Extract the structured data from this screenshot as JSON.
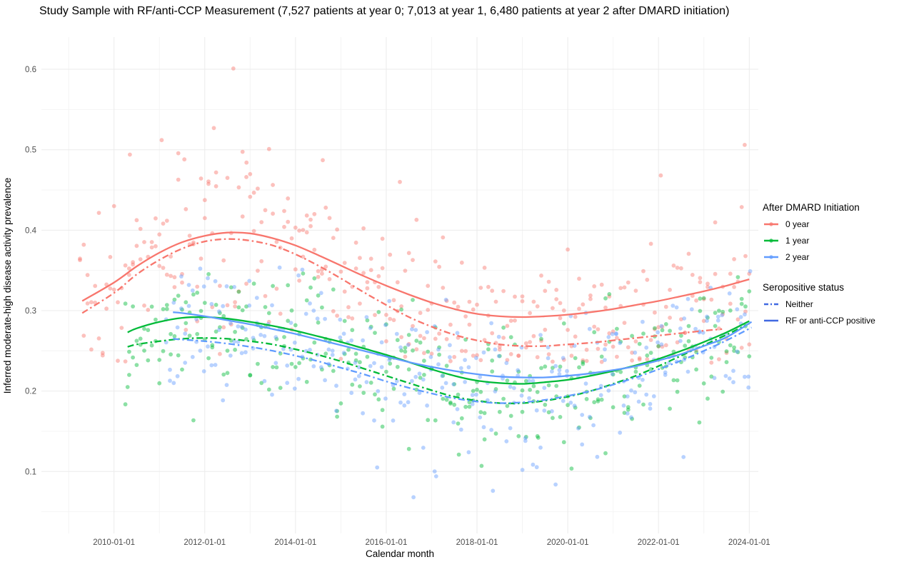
{
  "title": "Study Sample with RF/anti-CCP Measurement (7,527 patients at year 0; 7,013 at year 1, 6,480 patients at year 2 after DMARD initiation)",
  "axes": {
    "x": {
      "label": "Calendar month",
      "ticks": [
        "2010-01-01",
        "2012-01-01",
        "2014-01-01",
        "2016-01-01",
        "2018-01-01",
        "2020-01-01",
        "2022-01-01",
        "2024-01-01"
      ]
    },
    "y": {
      "label": "Inferred moderate-high disease activity prevalence",
      "ticks": [
        0.1,
        0.2,
        0.3,
        0.4,
        0.5,
        0.6
      ]
    }
  },
  "legend": {
    "color": {
      "title": "After DMARD Initiation",
      "items": [
        {
          "key": "0 year",
          "label": "0 year"
        },
        {
          "key": "1 year",
          "label": "1 year"
        },
        {
          "key": "2 year",
          "label": "2 year"
        }
      ]
    },
    "linetype": {
      "title": "Seropositive status",
      "color": "#4169E1",
      "items": [
        {
          "label": "Neither",
          "dash": "dotdash"
        },
        {
          "label": "RF or anti-CCP positive",
          "dash": "solid"
        }
      ]
    }
  },
  "chart_data": {
    "type": "scatter",
    "x_domain_years": [
      2008.4,
      2024.2
    ],
    "y_domain": [
      0.023,
      0.64
    ],
    "minor_x_years": [
      2009,
      2011,
      2013,
      2015,
      2017,
      2019,
      2021,
      2023
    ],
    "minor_y": [
      0.05,
      0.15,
      0.25,
      0.35,
      0.45,
      0.55
    ],
    "palette": {
      "0 year": "#F8766D",
      "1 year": "#00BA38",
      "2 year": "#619CFF"
    },
    "point_alpha": 0.45,
    "point_radius": 2.9,
    "line_width": 2.3,
    "dash_pattern": "9 4 2.5 4",
    "curves": [
      {
        "id": "y0_pos",
        "color_key": "0 year",
        "serostatus": "RF or anti-CCP positive",
        "linetype": "solid",
        "x": [
          2009.3,
          2010,
          2010.5,
          2011,
          2011.5,
          2012,
          2012.5,
          2013,
          2013.5,
          2014,
          2014.5,
          2015,
          2015.5,
          2016,
          2016.5,
          2017,
          2017.5,
          2018,
          2018.5,
          2019,
          2019.5,
          2020,
          2020.5,
          2021,
          2021.5,
          2022,
          2022.5,
          2023,
          2023.5,
          2024
        ],
        "y": [
          0.312,
          0.335,
          0.355,
          0.372,
          0.385,
          0.393,
          0.397,
          0.396,
          0.39,
          0.381,
          0.369,
          0.356,
          0.343,
          0.331,
          0.32,
          0.31,
          0.302,
          0.296,
          0.293,
          0.292,
          0.293,
          0.295,
          0.298,
          0.302,
          0.307,
          0.312,
          0.318,
          0.324,
          0.331,
          0.339
        ]
      },
      {
        "id": "y0_nei",
        "color_key": "0 year",
        "serostatus": "Neither",
        "linetype": "dotdash",
        "x": [
          2009.3,
          2010,
          2010.5,
          2011,
          2011.5,
          2012,
          2012.5,
          2013,
          2013.5,
          2014,
          2014.5,
          2015,
          2015.5,
          2016,
          2016.5,
          2017,
          2017.5,
          2018,
          2018.5,
          2019,
          2019.5,
          2020,
          2020.5,
          2021,
          2021.5,
          2022,
          2022.5,
          2023,
          2023.4
        ],
        "y": [
          0.297,
          0.322,
          0.345,
          0.363,
          0.377,
          0.386,
          0.389,
          0.387,
          0.381,
          0.37,
          0.356,
          0.34,
          0.323,
          0.307,
          0.292,
          0.28,
          0.27,
          0.263,
          0.258,
          0.256,
          0.256,
          0.258,
          0.26,
          0.263,
          0.266,
          0.269,
          0.272,
          0.275,
          0.277
        ]
      },
      {
        "id": "y1_pos",
        "color_key": "1 year",
        "serostatus": "RF or anti-CCP positive",
        "linetype": "solid",
        "x": [
          2010.3,
          2010.5,
          2011,
          2011.5,
          2012,
          2012.5,
          2013,
          2013.5,
          2014,
          2014.5,
          2015,
          2015.5,
          2016,
          2016.5,
          2017,
          2017.5,
          2018,
          2018.5,
          2019,
          2019.5,
          2020,
          2020.5,
          2021,
          2021.5,
          2022,
          2022.5,
          2023,
          2023.5,
          2024
        ],
        "y": [
          0.273,
          0.278,
          0.286,
          0.291,
          0.292,
          0.29,
          0.286,
          0.281,
          0.275,
          0.268,
          0.261,
          0.253,
          0.245,
          0.236,
          0.227,
          0.219,
          0.213,
          0.21,
          0.209,
          0.211,
          0.214,
          0.219,
          0.225,
          0.232,
          0.24,
          0.25,
          0.261,
          0.273,
          0.287
        ]
      },
      {
        "id": "y1_nei",
        "color_key": "1 year",
        "serostatus": "Neither",
        "linetype": "dotdash",
        "x": [
          2010.3,
          2010.5,
          2011,
          2011.5,
          2012,
          2012.5,
          2013,
          2013.5,
          2014,
          2014.5,
          2015,
          2015.5,
          2016,
          2016.5,
          2017,
          2017.5,
          2018,
          2018.5,
          2019,
          2019.5,
          2020,
          2020.5,
          2021,
          2021.5,
          2022,
          2022.5,
          2023,
          2023.5,
          2024
        ],
        "y": [
          0.255,
          0.258,
          0.262,
          0.265,
          0.266,
          0.265,
          0.262,
          0.258,
          0.252,
          0.245,
          0.237,
          0.228,
          0.219,
          0.21,
          0.201,
          0.193,
          0.188,
          0.185,
          0.185,
          0.188,
          0.193,
          0.2,
          0.209,
          0.219,
          0.231,
          0.244,
          0.257,
          0.27,
          0.284
        ]
      },
      {
        "id": "y2_pos",
        "color_key": "2 year",
        "serostatus": "RF or anti-CCP positive",
        "linetype": "solid",
        "x": [
          2011.3,
          2011.5,
          2012,
          2012.5,
          2013,
          2013.5,
          2014,
          2014.5,
          2015,
          2015.5,
          2016,
          2016.5,
          2017,
          2017.5,
          2018,
          2018.5,
          2019,
          2019.5,
          2020,
          2020.5,
          2021,
          2021.5,
          2022,
          2022.5,
          2023,
          2023.5,
          2024.05
        ],
        "y": [
          0.298,
          0.297,
          0.293,
          0.288,
          0.283,
          0.277,
          0.271,
          0.264,
          0.257,
          0.25,
          0.243,
          0.236,
          0.23,
          0.225,
          0.221,
          0.218,
          0.217,
          0.217,
          0.219,
          0.222,
          0.226,
          0.231,
          0.238,
          0.246,
          0.256,
          0.267,
          0.286
        ]
      },
      {
        "id": "y2_nei",
        "color_key": "2 year",
        "serostatus": "Neither",
        "linetype": "dotdash",
        "x": [
          2011.3,
          2011.5,
          2012,
          2012.5,
          2013,
          2013.5,
          2014,
          2014.5,
          2015,
          2015.5,
          2016,
          2016.5,
          2017,
          2017.5,
          2018,
          2018.5,
          2019,
          2019.5,
          2020,
          2020.5,
          2021,
          2021.5,
          2022,
          2022.5,
          2023,
          2023.5,
          2024.05
        ],
        "y": [
          0.265,
          0.264,
          0.262,
          0.259,
          0.255,
          0.25,
          0.244,
          0.237,
          0.229,
          0.221,
          0.212,
          0.204,
          0.197,
          0.191,
          0.187,
          0.185,
          0.186,
          0.189,
          0.194,
          0.2,
          0.208,
          0.217,
          0.227,
          0.238,
          0.25,
          0.263,
          0.279
        ]
      }
    ],
    "scatter": [
      {
        "color_key": "0 year",
        "x_start": 2009.25,
        "x_end": 2024.04,
        "step_years": 0.08333,
        "curve_refs": [
          "y0_pos",
          "y0_nei"
        ],
        "sd": 0.042,
        "sd_early_mult": 1.35,
        "early_until": 2013.5,
        "y_min": 0.235,
        "y_max": 0.615,
        "seed": 41,
        "extra_points": [
          [
            2012.63,
            0.601
          ],
          [
            2012.2,
            0.527
          ],
          [
            2011.05,
            0.512
          ],
          [
            2023.9,
            0.506
          ],
          [
            2010.35,
            0.494
          ],
          [
            2011.55,
            0.488
          ],
          [
            2012.92,
            0.484
          ],
          [
            2014.6,
            0.487
          ],
          [
            2016.3,
            0.46
          ],
          [
            2022.05,
            0.468
          ]
        ]
      },
      {
        "color_key": "1 year",
        "x_start": 2010.25,
        "x_end": 2024.04,
        "step_years": 0.08333,
        "curve_refs": [
          "y1_pos",
          "y1_nei"
        ],
        "sd": 0.036,
        "sd_early_mult": 1.0,
        "early_until": 2010,
        "y_min": 0.1,
        "y_max": 0.355,
        "seed": 42,
        "extra_points": [
          [
            2016.5,
            0.128
          ],
          [
            2018.1,
            0.107
          ],
          [
            2017.6,
            0.121
          ],
          [
            2019.35,
            0.142
          ],
          [
            2022.9,
            0.161
          ],
          [
            2010.3,
            0.205
          ]
        ]
      },
      {
        "color_key": "2 year",
        "x_start": 2011.15,
        "x_end": 2024.04,
        "step_years": 0.08333,
        "curve_refs": [
          "y2_pos",
          "y2_nei"
        ],
        "sd": 0.038,
        "sd_early_mult": 1.0,
        "early_until": 2011,
        "y_min": 0.062,
        "y_max": 0.355,
        "seed": 43,
        "extra_points": [
          [
            2016.6,
            0.068
          ],
          [
            2018.35,
            0.076
          ],
          [
            2017.1,
            0.094
          ],
          [
            2019.0,
            0.102
          ],
          [
            2022.55,
            0.118
          ],
          [
            2024.02,
            0.349
          ],
          [
            2015.8,
            0.105
          ]
        ]
      }
    ]
  }
}
